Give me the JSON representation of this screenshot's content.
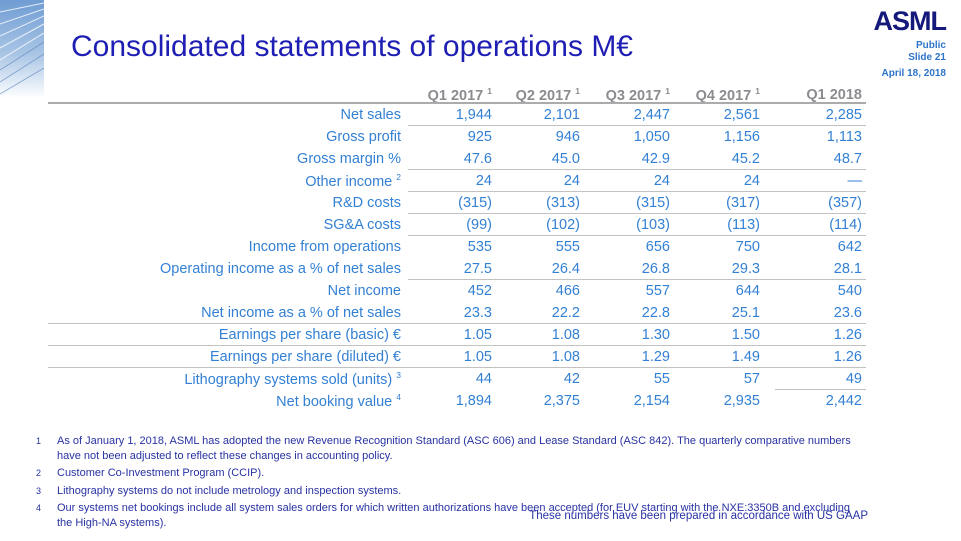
{
  "slide": {
    "title": "Consolidated statements of operations M€",
    "logo": "ASML",
    "classification": "Public",
    "slide_number": "Slide 21",
    "date": "April 18, 2018",
    "gaap_note": "These numbers have been prepared in accordance with US GAAP"
  },
  "colors": {
    "title_blue": "#1E1EB4",
    "data_blue": "#3380D4",
    "header_gray": "#8A8C90",
    "footnote_navy": "#2832A2",
    "logo_navy": "#14197B",
    "meta_blue": "#2D74C8",
    "rule_gray": "#C2C2C2"
  },
  "table": {
    "columns": [
      {
        "label": "Q1 2017",
        "sup": "1"
      },
      {
        "label": "Q2 2017",
        "sup": "1"
      },
      {
        "label": "Q3 2017",
        "sup": "1"
      },
      {
        "label": "Q4 2017",
        "sup": "1"
      },
      {
        "label": "Q1 2018",
        "sup": ""
      }
    ],
    "rows": [
      {
        "label": "Net sales",
        "sup": "",
        "values": [
          "1,944",
          "2,101",
          "2,447",
          "2,561",
          "2,285"
        ],
        "underline": "cols"
      },
      {
        "label": "Gross profit",
        "sup": "",
        "values": [
          "925",
          "946",
          "1,050",
          "1,156",
          "1,113"
        ],
        "underline": "none"
      },
      {
        "label": "Gross margin %",
        "sup": "",
        "values": [
          "47.6",
          "45.0",
          "42.9",
          "45.2",
          "48.7"
        ],
        "underline": "cols"
      },
      {
        "label": "Other income",
        "sup": "2",
        "values": [
          "24",
          "24",
          "24",
          "24",
          "—"
        ],
        "underline": "cols"
      },
      {
        "label": "R&D costs",
        "sup": "",
        "values": [
          "(315)",
          "(313)",
          "(315)",
          "(317)",
          "(357)"
        ],
        "underline": "cols"
      },
      {
        "label": "SG&A costs",
        "sup": "",
        "values": [
          "(99)",
          "(102)",
          "(103)",
          "(113)",
          "(114)"
        ],
        "underline": "cols"
      },
      {
        "label": "Income from operations",
        "sup": "",
        "values": [
          "535",
          "555",
          "656",
          "750",
          "642"
        ],
        "underline": "none"
      },
      {
        "label": "Operating income as a % of net sales",
        "sup": "",
        "values": [
          "27.5",
          "26.4",
          "26.8",
          "29.3",
          "28.1"
        ],
        "underline": "cols"
      },
      {
        "label": "Net income",
        "sup": "",
        "values": [
          "452",
          "466",
          "557",
          "644",
          "540"
        ],
        "underline": "none"
      },
      {
        "label": "Net income as a % of net sales",
        "sup": "",
        "values": [
          "23.3",
          "22.2",
          "22.8",
          "25.1",
          "23.6"
        ],
        "underline": "full"
      },
      {
        "label": "Earnings per share (basic) €",
        "sup": "",
        "values": [
          "1.05",
          "1.08",
          "1.30",
          "1.50",
          "1.26"
        ],
        "underline": "full"
      },
      {
        "label": "Earnings per share (diluted) €",
        "sup": "",
        "values": [
          "1.05",
          "1.08",
          "1.29",
          "1.49",
          "1.26"
        ],
        "underline": "full"
      },
      {
        "label": "Lithography systems sold (units)",
        "sup": "3",
        "values": [
          "44",
          "42",
          "55",
          "57",
          "49"
        ],
        "underline": "last"
      },
      {
        "label": "Net booking value",
        "sup": "4",
        "values": [
          "1,894",
          "2,375",
          "2,154",
          "2,935",
          "2,442"
        ],
        "underline": "none"
      }
    ]
  },
  "footnotes": [
    {
      "marker": "1",
      "text": "As of January 1, 2018, ASML has adopted the new Revenue Recognition Standard (ASC 606) and Lease Standard (ASC 842). The quarterly comparative numbers have not been adjusted to reflect these changes in accounting policy."
    },
    {
      "marker": "2",
      "text": "Customer Co-Investment Program (CCIP)."
    },
    {
      "marker": "3",
      "text": "Lithography systems do not include metrology and inspection systems."
    },
    {
      "marker": "4",
      "text": "Our systems net bookings include all system sales orders for which written authorizations have been accepted (for EUV starting with the NXE:3350B and excluding the High-NA systems)."
    }
  ]
}
